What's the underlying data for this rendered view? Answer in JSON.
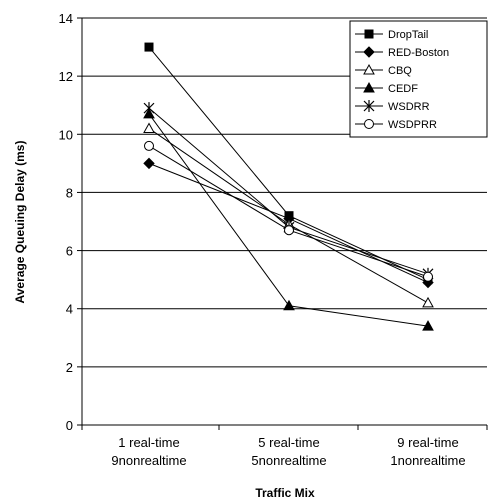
{
  "chart_data": {
    "type": "line",
    "xlabel": "Traffic Mix",
    "ylabel": "Average Queuing Delay (ms)",
    "categories": [
      [
        "1 real-time",
        "9nonrealtime"
      ],
      [
        "5 real-time",
        "5nonrealtime"
      ],
      [
        "9 real-time",
        "1nonrealtime"
      ]
    ],
    "ylim": [
      0,
      14
    ],
    "yticks": [
      0,
      2,
      4,
      6,
      8,
      10,
      12,
      14
    ],
    "grid": "horizontal",
    "legend_position": "top-right",
    "series": [
      {
        "name": "DropTail",
        "marker": "square-filled",
        "values": [
          13.0,
          7.2,
          5.0
        ]
      },
      {
        "name": "RED-Boston",
        "marker": "diamond-filled",
        "values": [
          9.0,
          7.1,
          4.9
        ]
      },
      {
        "name": "CBQ",
        "marker": "triangle-open",
        "values": [
          10.2,
          6.9,
          4.2
        ]
      },
      {
        "name": "CEDF",
        "marker": "triangle-filled",
        "values": [
          10.7,
          4.1,
          3.4
        ]
      },
      {
        "name": "WSDRR",
        "marker": "star",
        "values": [
          10.9,
          6.8,
          5.2
        ]
      },
      {
        "name": "WSDPRR",
        "marker": "circle-open",
        "values": [
          9.6,
          6.7,
          5.1
        ]
      }
    ]
  }
}
